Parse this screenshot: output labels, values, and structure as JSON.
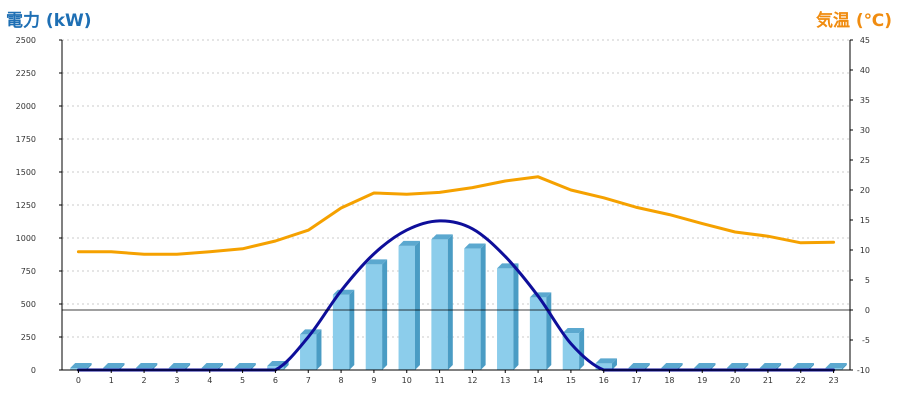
{
  "colors": {
    "left_axis_title": "#1E6FB4",
    "right_axis_title": "#F08C10",
    "bar_front": "#8CCDEB",
    "bar_side": "#4A9CC4",
    "bar_top": "#5BA8CF",
    "power_line": "#0E0E9A",
    "temp_line": "#F5A100",
    "grid": "#BBBBBB",
    "axis": "#000000"
  },
  "chart_data": {
    "type": "bar",
    "ylabel": "電力 (kW)",
    "y2label": "気温 (℃)",
    "ylim": [
      0,
      2500
    ],
    "y2lim": [
      -10,
      45
    ],
    "grid": true,
    "categories": [
      "0",
      "1",
      "2",
      "3",
      "4",
      "5",
      "6",
      "7",
      "8",
      "9",
      "10",
      "11",
      "12",
      "13",
      "14",
      "15",
      "16",
      "17",
      "18",
      "19",
      "20",
      "21",
      "22",
      "23"
    ],
    "yticks": [
      "0",
      "250",
      "500",
      "750",
      "1000",
      "1250",
      "1500",
      "1750",
      "2000",
      "2250",
      "2500"
    ],
    "y2ticks": [
      "-10",
      "-5",
      "0",
      "5",
      "10",
      "15",
      "20",
      "25",
      "30",
      "35",
      "40",
      "45"
    ],
    "series": [
      {
        "type": "bar",
        "axis": "left",
        "values": [
          0,
          0,
          0,
          0,
          0,
          0,
          30,
          270,
          570,
          800,
          940,
          990,
          920,
          770,
          550,
          280,
          50,
          0,
          0,
          0,
          0,
          0,
          0,
          0
        ]
      },
      {
        "type": "line",
        "axis": "left",
        "smooth": true,
        "values": [
          0,
          0,
          0,
          0,
          0,
          0,
          0,
          250,
          600,
          880,
          1060,
          1130,
          1070,
          860,
          560,
          200,
          0,
          0,
          0,
          0,
          0,
          0,
          0,
          0
        ]
      },
      {
        "type": "line",
        "axis": "right",
        "values": [
          9.7,
          9.7,
          9.3,
          9.3,
          9.7,
          10.2,
          11.5,
          13.3,
          17.0,
          19.5,
          19.3,
          19.6,
          20.4,
          21.5,
          22.2,
          20.0,
          18.7,
          17.1,
          15.9,
          14.4,
          13.0,
          12.3,
          11.2,
          11.3
        ]
      }
    ]
  }
}
